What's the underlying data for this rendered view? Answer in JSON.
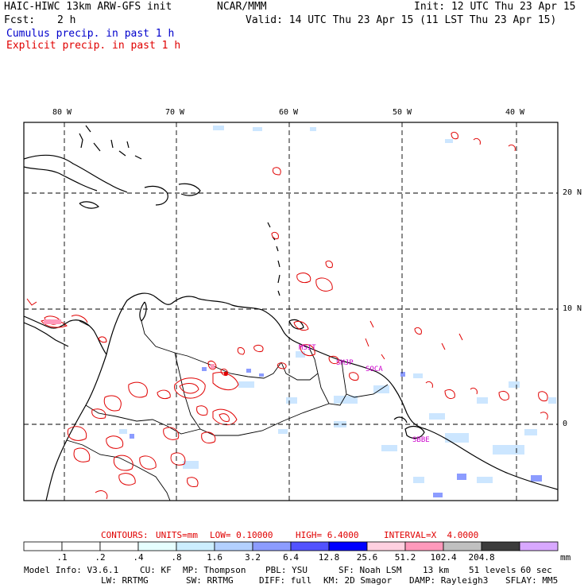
{
  "header": {
    "model_title": "HAIC-HIWC 13km ARW-GFS init",
    "org": "NCAR/MMM",
    "fcst_label": "Fcst:",
    "fcst_value": "2 h",
    "init": "Init: 12 UTC Thu 23 Apr 15",
    "valid": "Valid: 14 UTC Thu 23 Apr 15 (11 LST Thu 23 Apr 15)",
    "legend_cumulus": "Cumulus precip. in past 1 h",
    "legend_explicit": "Explicit precip. in past 1 h",
    "colors": {
      "cumulus": "#0000cc",
      "explicit": "#e00000"
    }
  },
  "map": {
    "lon_labels": [
      "80 W",
      "70 W",
      "60 W",
      "50 W",
      "40 W"
    ],
    "lat_labels": [
      "20 N",
      "10 N",
      "0"
    ],
    "stations": [
      "MSIT",
      "SMJP",
      "SOCA",
      "SBBE"
    ]
  },
  "contours": {
    "label": "CONTOURS:",
    "units": "UNITS=mm",
    "low": "LOW= 0.10000",
    "high": "HIGH= 6.4000",
    "interval": "INTERVAL=X  4.0000"
  },
  "colorbar": {
    "unit": "mm",
    "tick_labels": [
      ".1",
      ".2",
      ".4",
      ".8",
      "1.6",
      "3.2",
      "6.4",
      "12.8",
      "25.6",
      "51.2",
      "102.4",
      "204.8"
    ],
    "colors": [
      "#ffffff",
      "#ffffff",
      "#ffffff",
      "#e6ffff",
      "#cceeff",
      "#b3d0ff",
      "#8c9cff",
      "#5252ff",
      "#0000ff",
      "#ffd0e0",
      "#ff99bb",
      "#c0c0c0",
      "#3c3c3c",
      "#d8a8ff"
    ]
  },
  "model_info": {
    "line1": [
      "Model Info: V3.6.1",
      "CU: KF",
      "MP: Thompson",
      "PBL: YSU",
      "SF: Noah LSM",
      "13 km",
      "51 levels",
      "60 sec"
    ],
    "line2": [
      "LW: RRTMG",
      "SW: RRTMG",
      "DIFF: full",
      "KM: 2D Smagor",
      "DAMP: Rayleigh3",
      "SFLAY: MM5"
    ]
  }
}
